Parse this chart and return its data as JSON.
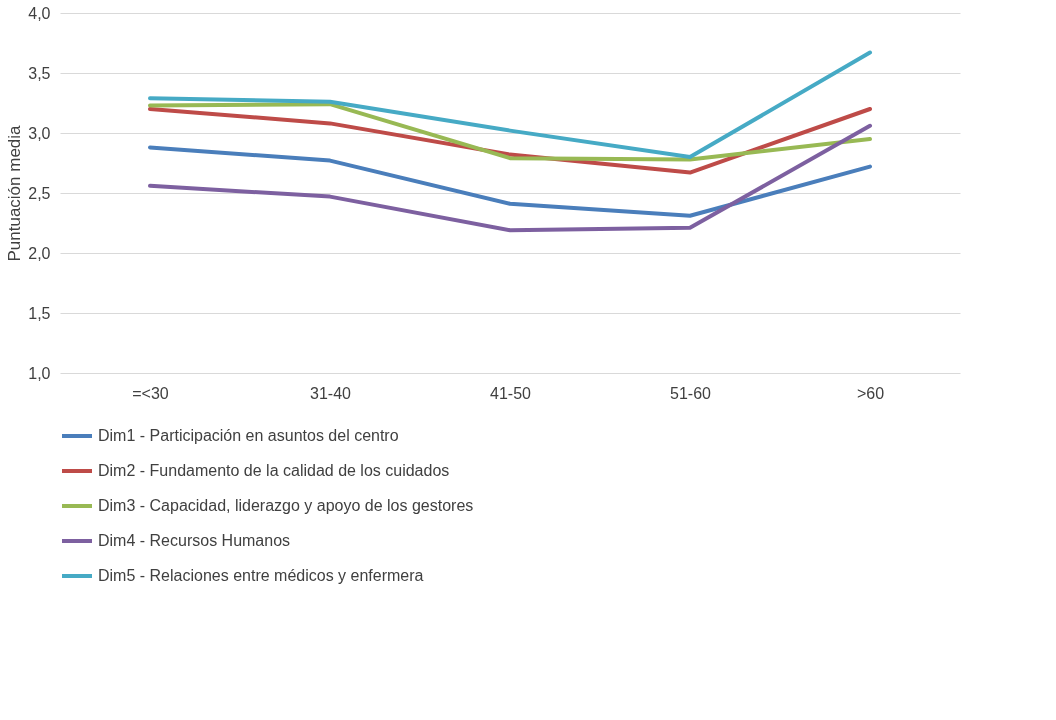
{
  "chart_data": {
    "type": "line",
    "ylabel": "Puntuación media",
    "categories": [
      "=<30",
      "31-40",
      "41-50",
      "51-60",
      ">60"
    ],
    "series": [
      {
        "name": "Dim1 - Participación en asuntos del centro",
        "color": "#4a7ebb",
        "values": [
          2.88,
          2.77,
          2.41,
          2.31,
          2.72
        ]
      },
      {
        "name": "Dim2 - Fundamento de la calidad de los cuidados",
        "color": "#be4b48",
        "values": [
          3.2,
          3.08,
          2.82,
          2.67,
          3.2
        ]
      },
      {
        "name": "Dim3 - Capacidad, liderazgo y apoyo de los gestores",
        "color": "#98b954",
        "values": [
          3.23,
          3.24,
          2.79,
          2.78,
          2.95
        ]
      },
      {
        "name": "Dim4 - Recursos Humanos",
        "color": "#7d60a0",
        "values": [
          2.56,
          2.47,
          2.19,
          2.21,
          3.06
        ]
      },
      {
        "name": "Dim5 - Relaciones entre médicos y enfermera",
        "color": "#46aac5",
        "values": [
          3.29,
          3.26,
          3.02,
          2.8,
          3.67
        ]
      }
    ],
    "ylim": [
      1.0,
      4.0
    ],
    "yticks": [
      {
        "value": 1.0,
        "label": "1,0"
      },
      {
        "value": 1.5,
        "label": "1,5"
      },
      {
        "value": 2.0,
        "label": "2,0"
      },
      {
        "value": 2.5,
        "label": "2,5"
      },
      {
        "value": 3.0,
        "label": "3,0"
      },
      {
        "value": 3.5,
        "label": "3,5"
      },
      {
        "value": 4.0,
        "label": "4,0"
      }
    ],
    "grid": "y",
    "legend": "bottom",
    "marker": "none",
    "line_style": "solid"
  }
}
